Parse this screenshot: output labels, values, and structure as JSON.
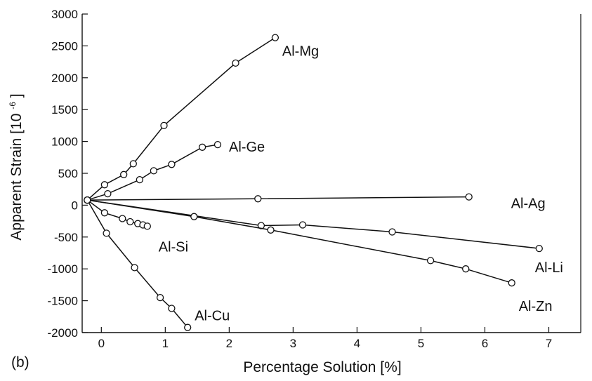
{
  "panel_label": "(b)",
  "chart_data": {
    "type": "line",
    "xlabel": "Percentage Solution [%]",
    "ylabel": "Apparent Strain [10",
    "ylabel_exp": "-6",
    "ylabel_end": "]",
    "xlim": [
      -0.3,
      7.5
    ],
    "ylim": [
      -2000,
      3000
    ],
    "xticks": [
      0,
      1,
      2,
      3,
      4,
      5,
      6,
      7
    ],
    "yticks": [
      -2000,
      -1500,
      -1000,
      -500,
      0,
      500,
      1000,
      1500,
      2000,
      2500,
      3000
    ],
    "grid": false,
    "series": [
      {
        "name": "Al-Mg",
        "x": [
          -0.22,
          0.05,
          0.35,
          0.5,
          0.98,
          2.1,
          2.72
        ],
        "y": [
          80,
          320,
          480,
          650,
          1250,
          2230,
          2630
        ]
      },
      {
        "name": "Al-Ge",
        "x": [
          -0.22,
          0.1,
          0.6,
          0.82,
          1.1,
          1.58,
          1.82
        ],
        "y": [
          80,
          180,
          400,
          540,
          640,
          910,
          950
        ]
      },
      {
        "name": "Al-Ag",
        "x": [
          -0.22,
          2.45,
          5.75
        ],
        "y": [
          80,
          100,
          130
        ]
      },
      {
        "name": "Al-Li",
        "x": [
          -0.22,
          2.5,
          3.15,
          4.55,
          6.85
        ],
        "y": [
          80,
          -320,
          -310,
          -420,
          -680
        ]
      },
      {
        "name": "Al-Zn",
        "x": [
          -0.22,
          1.45,
          2.65,
          5.15,
          5.7,
          6.42
        ],
        "y": [
          80,
          -180,
          -390,
          -870,
          -1000,
          -1220
        ]
      },
      {
        "name": "Al-Si",
        "x": [
          -0.22,
          0.05,
          0.33,
          0.45,
          0.57,
          0.65,
          0.72
        ],
        "y": [
          80,
          -120,
          -210,
          -260,
          -290,
          -310,
          -330
        ]
      },
      {
        "name": "Al-Cu",
        "x": [
          -0.22,
          0.08,
          0.52,
          0.92,
          1.1,
          1.35
        ],
        "y": [
          80,
          -440,
          -980,
          -1450,
          -1620,
          -1920
        ]
      }
    ]
  }
}
